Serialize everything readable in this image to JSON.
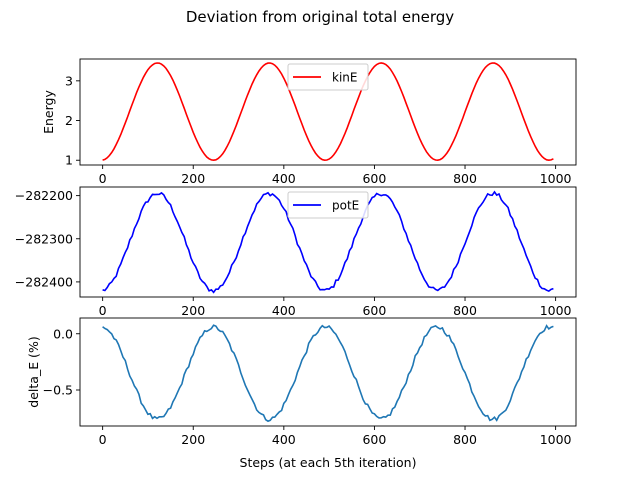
{
  "figure": {
    "title": "Deviation from original total energy",
    "xlabel": "Steps (at each 5th iteration)"
  },
  "colors": {
    "kin": "#ff0000",
    "pot": "#0000ff",
    "delta": "#1f77b4",
    "axes": "#000000",
    "background": "#ffffff"
  },
  "chart_data": [
    {
      "type": "line",
      "series": [
        {
          "name": "kinE",
          "color": "#ff0000"
        }
      ],
      "x_range": [
        0,
        995
      ],
      "oscillation": {
        "min": 1.0,
        "max": 3.45,
        "period_steps": 247,
        "first_peak_step": 121
      },
      "ylabel": "Energy",
      "x_ticks": [
        "0",
        "200",
        "400",
        "600",
        "800",
        "1000"
      ],
      "y_ticks": [
        "1",
        "2",
        "3"
      ],
      "ylim": [
        0.88,
        3.55
      ],
      "legend": "top-center"
    },
    {
      "type": "line",
      "series": [
        {
          "name": "potE",
          "color": "#0000ff"
        }
      ],
      "x_range": [
        0,
        995
      ],
      "oscillation": {
        "min": -282420,
        "max": -282195,
        "period_steps": 247,
        "first_peak_step": 121,
        "noise": 5
      },
      "ylabel": "",
      "x_ticks": [
        "0",
        "200",
        "400",
        "600",
        "800",
        "1000"
      ],
      "y_ticks": [
        "−282200",
        "−282300",
        "−282400"
      ],
      "ylim": [
        -282435,
        -282180
      ],
      "legend": "top-center"
    },
    {
      "type": "line",
      "series": [
        {
          "name": "delta_E",
          "color": "#1f77b4"
        }
      ],
      "x_range": [
        0,
        995
      ],
      "oscillation": {
        "min": -0.76,
        "max": 0.06,
        "period_steps": 247,
        "first_peak_step": 121,
        "noise": 0.02
      },
      "ylabel": "delta_E (%)",
      "x_ticks": [
        "0",
        "200",
        "400",
        "600",
        "800",
        "1000"
      ],
      "y_ticks": [
        "0.0",
        "−0.5"
      ],
      "ylim": [
        -0.82,
        0.14
      ]
    }
  ]
}
